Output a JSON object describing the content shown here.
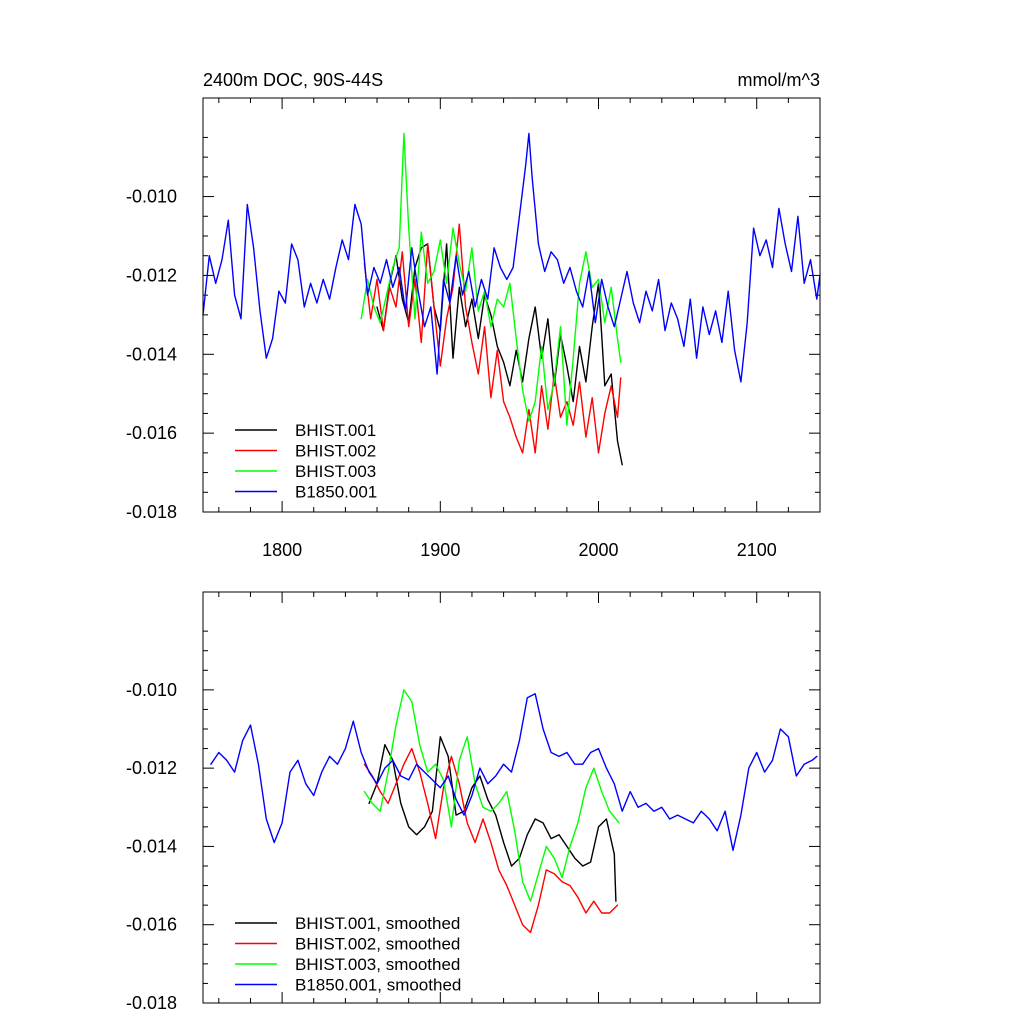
{
  "chart_data": [
    {
      "type": "line",
      "title": "2400m DOC, 90S-44S",
      "units": "mmol/m^3",
      "xlim": [
        1750,
        2140
      ],
      "ylim": [
        -0.018,
        -0.0075
      ],
      "xticks": [
        1800,
        1900,
        2000,
        2100
      ],
      "xtick_labels": [
        "1800",
        "1900",
        "2000",
        "2100"
      ],
      "yticks": [
        -0.018,
        -0.016,
        -0.014,
        -0.012,
        -0.01
      ],
      "ytick_labels": [
        "-0.018",
        "-0.016",
        "-0.014",
        "-0.012",
        "-0.010"
      ],
      "legend_position": "bottom-left",
      "series": [
        {
          "name": "BHIST.001",
          "color": "#000000",
          "x": [
            1860,
            1864,
            1868,
            1872,
            1876,
            1880,
            1884,
            1888,
            1892,
            1896,
            1900,
            1904,
            1908,
            1912,
            1916,
            1920,
            1924,
            1928,
            1932,
            1936,
            1940,
            1944,
            1948,
            1952,
            1956,
            1960,
            1964,
            1968,
            1972,
            1976,
            1980,
            1984,
            1988,
            1992,
            1996,
            2000,
            2004,
            2008,
            2012,
            2015
          ],
          "y": [
            -0.0128,
            -0.0134,
            -0.0122,
            -0.0115,
            -0.0126,
            -0.0132,
            -0.0118,
            -0.0113,
            -0.0112,
            -0.0128,
            -0.0134,
            -0.0112,
            -0.0141,
            -0.0123,
            -0.0133,
            -0.0126,
            -0.0136,
            -0.0125,
            -0.013,
            -0.0138,
            -0.0142,
            -0.0148,
            -0.0139,
            -0.0147,
            -0.0136,
            -0.0128,
            -0.0141,
            -0.0131,
            -0.0148,
            -0.0135,
            -0.0143,
            -0.0152,
            -0.0138,
            -0.0147,
            -0.0133,
            -0.0122,
            -0.0148,
            -0.0145,
            -0.0162,
            -0.0168
          ]
        },
        {
          "name": "BHIST.002",
          "color": "#ff0000",
          "x": [
            1852,
            1856,
            1860,
            1864,
            1868,
            1872,
            1876,
            1880,
            1884,
            1888,
            1892,
            1896,
            1900,
            1904,
            1908,
            1912,
            1916,
            1920,
            1924,
            1928,
            1932,
            1936,
            1940,
            1944,
            1948,
            1952,
            1956,
            1960,
            1964,
            1968,
            1972,
            1976,
            1980,
            1984,
            1988,
            1992,
            1996,
            2000,
            2004,
            2008,
            2012,
            2014
          ],
          "y": [
            -0.0117,
            -0.0131,
            -0.0121,
            -0.0134,
            -0.0123,
            -0.0128,
            -0.0114,
            -0.0133,
            -0.0121,
            -0.0137,
            -0.0112,
            -0.0128,
            -0.0143,
            -0.0131,
            -0.0123,
            -0.0107,
            -0.0128,
            -0.0137,
            -0.0145,
            -0.0133,
            -0.0151,
            -0.0139,
            -0.0152,
            -0.0156,
            -0.0161,
            -0.0165,
            -0.0154,
            -0.0165,
            -0.0148,
            -0.0159,
            -0.0145,
            -0.0156,
            -0.0152,
            -0.0158,
            -0.0147,
            -0.0161,
            -0.0151,
            -0.0165,
            -0.0155,
            -0.0148,
            -0.0156,
            -0.0146
          ]
        },
        {
          "name": "BHIST.003",
          "color": "#00ff00",
          "x": [
            1850,
            1854,
            1858,
            1862,
            1866,
            1870,
            1874,
            1877,
            1880,
            1884,
            1888,
            1892,
            1896,
            1900,
            1904,
            1908,
            1912,
            1916,
            1920,
            1924,
            1928,
            1932,
            1936,
            1940,
            1944,
            1948,
            1952,
            1956,
            1960,
            1964,
            1968,
            1972,
            1976,
            1980,
            1984,
            1988,
            1992,
            1996,
            2000,
            2004,
            2008,
            2012,
            2014
          ],
          "y": [
            -0.0131,
            -0.0121,
            -0.0128,
            -0.0132,
            -0.0125,
            -0.0118,
            -0.0113,
            -0.0084,
            -0.0108,
            -0.0131,
            -0.0109,
            -0.0122,
            -0.0119,
            -0.0111,
            -0.0122,
            -0.0108,
            -0.0117,
            -0.0124,
            -0.0113,
            -0.0129,
            -0.0124,
            -0.0133,
            -0.0126,
            -0.0128,
            -0.0122,
            -0.0136,
            -0.0149,
            -0.0157,
            -0.0152,
            -0.0138,
            -0.0154,
            -0.0147,
            -0.0133,
            -0.0158,
            -0.0141,
            -0.0122,
            -0.0114,
            -0.0123,
            -0.0121,
            -0.0132,
            -0.0123,
            -0.0136,
            -0.0142
          ]
        },
        {
          "name": "B1850.001",
          "color": "#0000ff",
          "x": [
            1750,
            1754,
            1758,
            1762,
            1766,
            1770,
            1774,
            1778,
            1782,
            1786,
            1790,
            1794,
            1798,
            1802,
            1806,
            1810,
            1814,
            1818,
            1822,
            1826,
            1830,
            1834,
            1838,
            1842,
            1846,
            1850,
            1854,
            1858,
            1862,
            1866,
            1870,
            1874,
            1878,
            1882,
            1886,
            1890,
            1894,
            1898,
            1902,
            1906,
            1910,
            1914,
            1918,
            1922,
            1926,
            1930,
            1934,
            1938,
            1942,
            1946,
            1950,
            1954,
            1956,
            1958,
            1962,
            1966,
            1970,
            1974,
            1978,
            1982,
            1986,
            1990,
            1994,
            1998,
            2002,
            2006,
            2010,
            2014,
            2018,
            2022,
            2026,
            2030,
            2034,
            2038,
            2042,
            2046,
            2050,
            2054,
            2058,
            2062,
            2066,
            2070,
            2074,
            2078,
            2082,
            2086,
            2090,
            2094,
            2098,
            2102,
            2106,
            2110,
            2114,
            2118,
            2122,
            2126,
            2130,
            2134,
            2138,
            2140
          ],
          "y": [
            -0.013,
            -0.0115,
            -0.0122,
            -0.0116,
            -0.0106,
            -0.0125,
            -0.0131,
            -0.0102,
            -0.0113,
            -0.0129,
            -0.0141,
            -0.0136,
            -0.0124,
            -0.0127,
            -0.0112,
            -0.0116,
            -0.0128,
            -0.0122,
            -0.0127,
            -0.0121,
            -0.0126,
            -0.0118,
            -0.0111,
            -0.0116,
            -0.0102,
            -0.0107,
            -0.0125,
            -0.0118,
            -0.0122,
            -0.0116,
            -0.0123,
            -0.0118,
            -0.0129,
            -0.0113,
            -0.0124,
            -0.0133,
            -0.0128,
            -0.0145,
            -0.0121,
            -0.0127,
            -0.0115,
            -0.0125,
            -0.0119,
            -0.0128,
            -0.0121,
            -0.0126,
            -0.0113,
            -0.0118,
            -0.0121,
            -0.0118,
            -0.0105,
            -0.0092,
            -0.0084,
            -0.0095,
            -0.0112,
            -0.0119,
            -0.0114,
            -0.0116,
            -0.0122,
            -0.0118,
            -0.0124,
            -0.0128,
            -0.0119,
            -0.0132,
            -0.0121,
            -0.0128,
            -0.0133,
            -0.0126,
            -0.0119,
            -0.0127,
            -0.0132,
            -0.0124,
            -0.0129,
            -0.0121,
            -0.0134,
            -0.0127,
            -0.0131,
            -0.0138,
            -0.0126,
            -0.0141,
            -0.0128,
            -0.0135,
            -0.0129,
            -0.0137,
            -0.0124,
            -0.0139,
            -0.0147,
            -0.0132,
            -0.0108,
            -0.0115,
            -0.0111,
            -0.0118,
            -0.0103,
            -0.0112,
            -0.0119,
            -0.0105,
            -0.0122,
            -0.0116,
            -0.0126,
            -0.012
          ]
        }
      ]
    },
    {
      "type": "line",
      "title": "",
      "units": "",
      "xlim": [
        1750,
        2140
      ],
      "ylim": [
        -0.018,
        -0.0075
      ],
      "xticks": [
        1800,
        1900,
        2000,
        2100
      ],
      "xtick_labels": [],
      "yticks": [
        -0.018,
        -0.016,
        -0.014,
        -0.012,
        -0.01
      ],
      "ytick_labels": [
        "-0.018",
        "-0.016",
        "-0.014",
        "-0.012",
        "-0.010"
      ],
      "legend_position": "bottom-left",
      "series": [
        {
          "name": "BHIST.001, smoothed",
          "color": "#000000",
          "x": [
            1855,
            1860,
            1865,
            1870,
            1875,
            1880,
            1885,
            1890,
            1895,
            1900,
            1905,
            1910,
            1915,
            1920,
            1925,
            1930,
            1935,
            1940,
            1945,
            1950,
            1955,
            1960,
            1965,
            1970,
            1975,
            1980,
            1985,
            1990,
            1995,
            2000,
            2005,
            2010,
            2011
          ],
          "y": [
            -0.0129,
            -0.0124,
            -0.0114,
            -0.0118,
            -0.0129,
            -0.0135,
            -0.0137,
            -0.0135,
            -0.0131,
            -0.0112,
            -0.0117,
            -0.0132,
            -0.0131,
            -0.0125,
            -0.0122,
            -0.0128,
            -0.0132,
            -0.0139,
            -0.0145,
            -0.0143,
            -0.0137,
            -0.0133,
            -0.0134,
            -0.0138,
            -0.0137,
            -0.014,
            -0.0143,
            -0.0145,
            -0.0144,
            -0.0135,
            -0.0133,
            -0.0142,
            -0.0154
          ]
        },
        {
          "name": "BHIST.002, smoothed",
          "color": "#ff0000",
          "x": [
            1852,
            1857,
            1862,
            1867,
            1872,
            1877,
            1882,
            1887,
            1892,
            1897,
            1902,
            1907,
            1912,
            1917,
            1922,
            1927,
            1932,
            1937,
            1942,
            1947,
            1952,
            1957,
            1962,
            1967,
            1972,
            1977,
            1982,
            1987,
            1992,
            1997,
            2002,
            2007,
            2012
          ],
          "y": [
            -0.0119,
            -0.0122,
            -0.0126,
            -0.0129,
            -0.0124,
            -0.0119,
            -0.0115,
            -0.0121,
            -0.0129,
            -0.0138,
            -0.0125,
            -0.0117,
            -0.0124,
            -0.0134,
            -0.0139,
            -0.0133,
            -0.0139,
            -0.0146,
            -0.015,
            -0.0155,
            -0.016,
            -0.0162,
            -0.0155,
            -0.0146,
            -0.0147,
            -0.0149,
            -0.015,
            -0.0153,
            -0.0157,
            -0.0154,
            -0.0157,
            -0.0157,
            -0.0155
          ]
        },
        {
          "name": "BHIST.003, smoothed",
          "color": "#00ff00",
          "x": [
            1852,
            1857,
            1862,
            1867,
            1872,
            1877,
            1882,
            1887,
            1892,
            1897,
            1902,
            1907,
            1912,
            1917,
            1922,
            1927,
            1932,
            1937,
            1942,
            1947,
            1952,
            1957,
            1962,
            1967,
            1972,
            1977,
            1982,
            1987,
            1992,
            1997,
            2002,
            2007,
            2013
          ],
          "y": [
            -0.0126,
            -0.0129,
            -0.0131,
            -0.0121,
            -0.0109,
            -0.01,
            -0.0103,
            -0.0114,
            -0.0121,
            -0.0119,
            -0.0123,
            -0.0135,
            -0.0118,
            -0.0112,
            -0.0124,
            -0.013,
            -0.0131,
            -0.0129,
            -0.0126,
            -0.0136,
            -0.0149,
            -0.0154,
            -0.0147,
            -0.014,
            -0.0143,
            -0.0148,
            -0.014,
            -0.0134,
            -0.0125,
            -0.012,
            -0.0126,
            -0.0131,
            -0.0134
          ]
        },
        {
          "name": "B1850.001, smoothed",
          "color": "#0000ff",
          "x": [
            1755,
            1760,
            1765,
            1770,
            1775,
            1780,
            1785,
            1790,
            1795,
            1800,
            1805,
            1810,
            1815,
            1820,
            1825,
            1830,
            1835,
            1840,
            1845,
            1850,
            1855,
            1860,
            1865,
            1870,
            1875,
            1880,
            1885,
            1890,
            1895,
            1900,
            1905,
            1910,
            1915,
            1920,
            1925,
            1930,
            1935,
            1940,
            1945,
            1950,
            1955,
            1960,
            1965,
            1970,
            1975,
            1980,
            1985,
            1990,
            1995,
            2000,
            2005,
            2010,
            2015,
            2020,
            2025,
            2030,
            2035,
            2040,
            2045,
            2050,
            2055,
            2060,
            2065,
            2070,
            2075,
            2080,
            2085,
            2090,
            2095,
            2100,
            2105,
            2110,
            2115,
            2120,
            2125,
            2130,
            2135,
            2138
          ],
          "y": [
            -0.0119,
            -0.0116,
            -0.0118,
            -0.0121,
            -0.0113,
            -0.0109,
            -0.0119,
            -0.0133,
            -0.0139,
            -0.0134,
            -0.0121,
            -0.0118,
            -0.0124,
            -0.0127,
            -0.0121,
            -0.0117,
            -0.0119,
            -0.0115,
            -0.0108,
            -0.0116,
            -0.0121,
            -0.0124,
            -0.012,
            -0.0118,
            -0.0122,
            -0.0123,
            -0.0119,
            -0.0121,
            -0.0123,
            -0.0125,
            -0.0122,
            -0.0128,
            -0.0132,
            -0.0127,
            -0.012,
            -0.0124,
            -0.0122,
            -0.0119,
            -0.0121,
            -0.0113,
            -0.0102,
            -0.0101,
            -0.011,
            -0.0116,
            -0.0117,
            -0.0116,
            -0.0119,
            -0.0119,
            -0.0116,
            -0.0115,
            -0.012,
            -0.0124,
            -0.0131,
            -0.0126,
            -0.013,
            -0.0129,
            -0.0131,
            -0.013,
            -0.0133,
            -0.0132,
            -0.0133,
            -0.0134,
            -0.0131,
            -0.0133,
            -0.0136,
            -0.0131,
            -0.0141,
            -0.0132,
            -0.012,
            -0.0116,
            -0.0121,
            -0.0118,
            -0.011,
            -0.0112,
            -0.0122,
            -0.0119,
            -0.0118,
            -0.0117
          ]
        }
      ]
    }
  ]
}
